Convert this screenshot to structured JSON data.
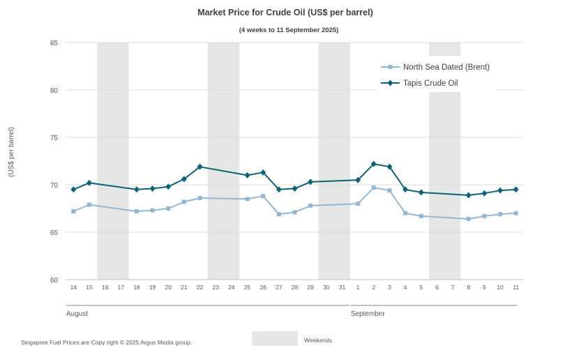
{
  "chart_data": {
    "type": "line",
    "title": "Market Price for Crude  Oil (US$ per barrel)",
    "subtitle": "(4 weeks to 11 September 2025)",
    "ylabel": "(US$ per barrel)",
    "ylim": [
      60,
      85
    ],
    "yticks": [
      "60",
      "65",
      "70",
      "75",
      "80",
      "85"
    ],
    "x": [
      "14",
      "15",
      "16",
      "17",
      "18",
      "19",
      "20",
      "21",
      "22",
      "23",
      "24",
      "25",
      "26",
      "27",
      "28",
      "29",
      "30",
      "31",
      "1",
      "2",
      "3",
      "4",
      "5",
      "6",
      "7",
      "8",
      "9",
      "10",
      "11"
    ],
    "months": [
      {
        "label": "August",
        "from": "14",
        "to": "31"
      },
      {
        "label": "September",
        "from": "1",
        "to": "11"
      }
    ],
    "weekends": [
      [
        "16",
        "17"
      ],
      [
        "23",
        "24"
      ],
      [
        "30",
        "31"
      ],
      [
        "6",
        "7"
      ]
    ],
    "weekend_label": "Weekends",
    "weekend_color": "#e6e6e6",
    "series": [
      {
        "name": "North Sea Dated (Brent)",
        "color": "#8fb8d8",
        "marker": "square",
        "values": [
          67.2,
          67.9,
          null,
          null,
          67.2,
          67.3,
          67.5,
          68.2,
          68.6,
          null,
          null,
          68.5,
          68.8,
          66.9,
          67.1,
          67.8,
          null,
          null,
          68.0,
          69.7,
          69.4,
          67.0,
          66.7,
          null,
          null,
          66.4,
          66.7,
          66.9,
          67.0
        ]
      },
      {
        "name": "Tapis Crude Oil",
        "color": "#0b6378",
        "marker": "diamond",
        "values": [
          69.5,
          70.2,
          null,
          null,
          69.5,
          69.6,
          69.8,
          70.6,
          71.9,
          null,
          null,
          71.0,
          71.3,
          69.5,
          69.6,
          70.3,
          null,
          null,
          70.5,
          72.2,
          71.9,
          69.5,
          69.2,
          null,
          null,
          68.9,
          69.1,
          69.4,
          69.5
        ]
      }
    ],
    "legend_position": "top-right",
    "grid": true
  },
  "footer": {
    "copyright": "Singapore  Fuel Prices are  Copy right © 2025 Argus Media  group."
  }
}
